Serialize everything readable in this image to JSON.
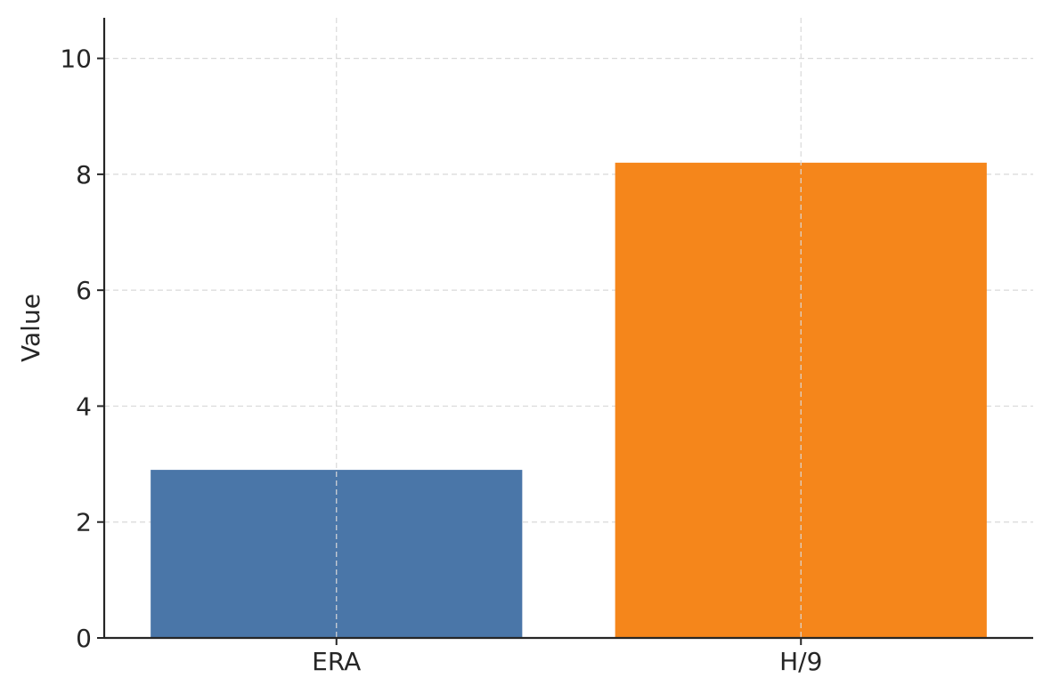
{
  "chart_data": {
    "type": "bar",
    "title": "",
    "xlabel": "",
    "ylabel": "Value",
    "categories": [
      "ERA",
      "H/9"
    ],
    "values": [
      2.9,
      8.2
    ],
    "colors": [
      "#4a76a8",
      "#f5861b"
    ],
    "ylim": [
      0,
      10.7
    ],
    "yticks": [
      0,
      2,
      4,
      6,
      8,
      10
    ],
    "grid": true,
    "legend": "none"
  }
}
